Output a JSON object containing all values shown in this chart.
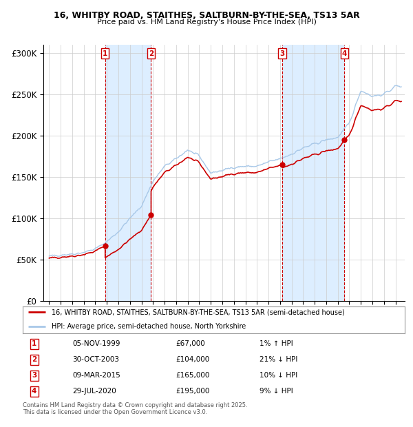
{
  "title1": "16, WHITBY ROAD, STAITHES, SALTBURN-BY-THE-SEA, TS13 5AR",
  "title2": "Price paid vs. HM Land Registry's House Price Index (HPI)",
  "legend_line1": "16, WHITBY ROAD, STAITHES, SALTBURN-BY-THE-SEA, TS13 5AR (semi-detached house)",
  "legend_line2": "HPI: Average price, semi-detached house, North Yorkshire",
  "footer": "Contains HM Land Registry data © Crown copyright and database right 2025.\nThis data is licensed under the Open Government Licence v3.0.",
  "transactions": [
    {
      "num": 1,
      "date": "05-NOV-1999",
      "price": 67000,
      "pct": "1% ↑ HPI",
      "year": 1999.85
    },
    {
      "num": 2,
      "date": "30-OCT-2003",
      "price": 104000,
      "pct": "21% ↓ HPI",
      "year": 2003.83
    },
    {
      "num": 3,
      "date": "09-MAR-2015",
      "price": 165000,
      "pct": "10% ↓ HPI",
      "year": 2015.19
    },
    {
      "num": 4,
      "date": "29-JUL-2020",
      "price": 195000,
      "pct": "9% ↓ HPI",
      "year": 2020.58
    }
  ],
  "hpi_color": "#a8c8e8",
  "price_color": "#cc0000",
  "shade_color": "#ddeeff",
  "background": "#ffffff",
  "grid_color": "#cccccc",
  "ylim": [
    0,
    310000
  ],
  "yticks": [
    0,
    50000,
    100000,
    150000,
    200000,
    250000,
    300000
  ],
  "ytick_labels": [
    "£0",
    "£50K",
    "£100K",
    "£150K",
    "£200K",
    "£250K",
    "£300K"
  ],
  "xlim_start": 1994.5,
  "xlim_end": 2025.8,
  "hpi_anchors_years": [
    1995,
    1996,
    1997,
    1998,
    1999,
    2000,
    2001,
    2002,
    2003,
    2004,
    2005,
    2006,
    2007,
    2008,
    2009,
    2010,
    2011,
    2012,
    2013,
    2014,
    2015,
    2016,
    2017,
    2018,
    2019,
    2020,
    2021,
    2022,
    2023,
    2024,
    2025
  ],
  "hpi_anchors_values": [
    54000,
    56000,
    57000,
    59000,
    63000,
    72000,
    84000,
    100000,
    115000,
    145000,
    163000,
    172000,
    183000,
    175000,
    155000,
    158000,
    162000,
    163000,
    163000,
    168000,
    172000,
    178000,
    185000,
    190000,
    195000,
    198000,
    215000,
    255000,
    248000,
    250000,
    260000
  ]
}
